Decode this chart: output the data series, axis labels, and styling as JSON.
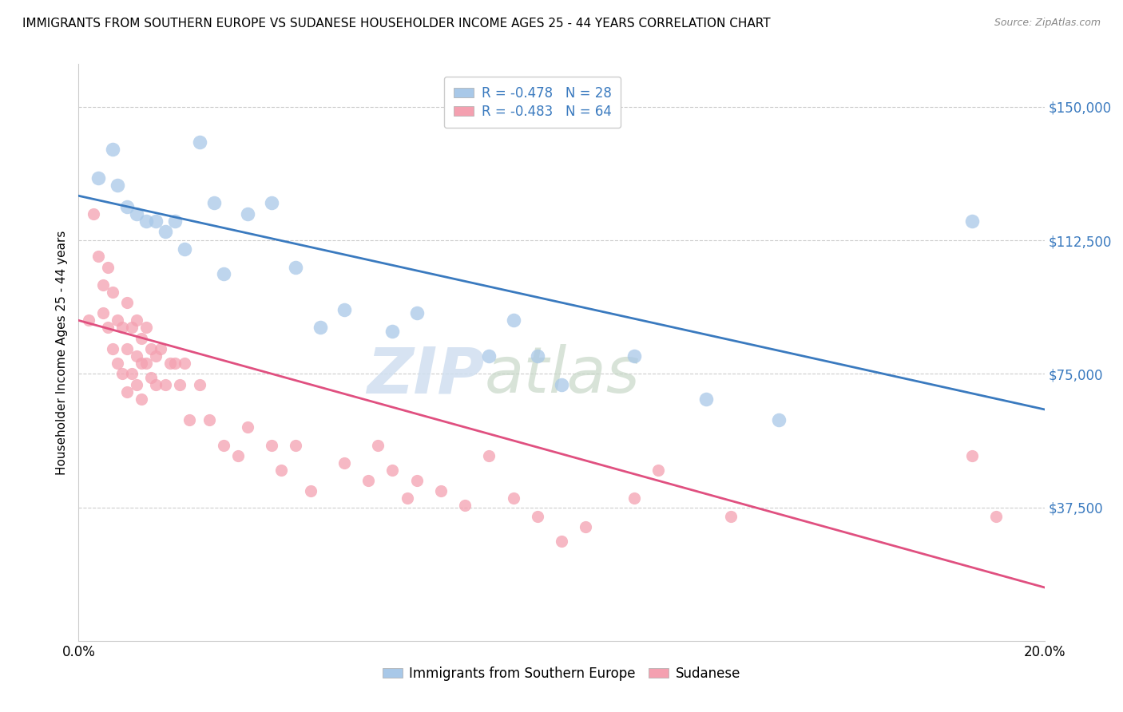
{
  "title": "IMMIGRANTS FROM SOUTHERN EUROPE VS SUDANESE HOUSEHOLDER INCOME AGES 25 - 44 YEARS CORRELATION CHART",
  "source": "Source: ZipAtlas.com",
  "ylabel": "Householder Income Ages 25 - 44 years",
  "xlim": [
    0.0,
    0.2
  ],
  "ylim": [
    0,
    162000
  ],
  "yticks": [
    37500,
    75000,
    112500,
    150000
  ],
  "ytick_labels": [
    "$37,500",
    "$75,000",
    "$112,500",
    "$150,000"
  ],
  "xticks": [
    0.0,
    0.05,
    0.1,
    0.15,
    0.2
  ],
  "xtick_labels": [
    "0.0%",
    "",
    "",
    "",
    "20.0%"
  ],
  "legend_r1": "R = -0.478   N = 28",
  "legend_r2": "R = -0.483   N = 64",
  "blue_color": "#a8c8e8",
  "pink_color": "#f4a0b0",
  "blue_line_color": "#3a7abf",
  "pink_line_color": "#e05080",
  "blue_tick_color": "#3a7abf",
  "watermark_zip": "ZIP",
  "watermark_atlas": "atlas",
  "blue_line_x0": 0.0,
  "blue_line_y0": 125000,
  "blue_line_x1": 0.2,
  "blue_line_y1": 65000,
  "pink_line_x0": 0.0,
  "pink_line_y0": 90000,
  "pink_line_x1": 0.2,
  "pink_line_y1": 15000,
  "blue_scatter_x": [
    0.004,
    0.007,
    0.008,
    0.01,
    0.012,
    0.014,
    0.016,
    0.018,
    0.02,
    0.022,
    0.025,
    0.028,
    0.03,
    0.035,
    0.04,
    0.045,
    0.05,
    0.055,
    0.065,
    0.07,
    0.085,
    0.09,
    0.095,
    0.1,
    0.115,
    0.13,
    0.145,
    0.185
  ],
  "blue_scatter_y": [
    130000,
    138000,
    128000,
    122000,
    120000,
    118000,
    118000,
    115000,
    118000,
    110000,
    140000,
    123000,
    103000,
    120000,
    123000,
    105000,
    88000,
    93000,
    87000,
    92000,
    80000,
    90000,
    80000,
    72000,
    80000,
    68000,
    62000,
    118000
  ],
  "pink_scatter_x": [
    0.002,
    0.003,
    0.004,
    0.005,
    0.005,
    0.006,
    0.006,
    0.007,
    0.007,
    0.008,
    0.008,
    0.009,
    0.009,
    0.01,
    0.01,
    0.01,
    0.011,
    0.011,
    0.012,
    0.012,
    0.012,
    0.013,
    0.013,
    0.013,
    0.014,
    0.014,
    0.015,
    0.015,
    0.016,
    0.016,
    0.017,
    0.018,
    0.019,
    0.02,
    0.021,
    0.022,
    0.023,
    0.025,
    0.027,
    0.03,
    0.033,
    0.035,
    0.04,
    0.042,
    0.045,
    0.048,
    0.055,
    0.06,
    0.062,
    0.065,
    0.068,
    0.07,
    0.075,
    0.08,
    0.085,
    0.09,
    0.095,
    0.1,
    0.105,
    0.115,
    0.12,
    0.135,
    0.185,
    0.19
  ],
  "pink_scatter_y": [
    90000,
    120000,
    108000,
    100000,
    92000,
    105000,
    88000,
    98000,
    82000,
    90000,
    78000,
    88000,
    75000,
    95000,
    82000,
    70000,
    88000,
    75000,
    90000,
    80000,
    72000,
    85000,
    78000,
    68000,
    88000,
    78000,
    82000,
    74000,
    80000,
    72000,
    82000,
    72000,
    78000,
    78000,
    72000,
    78000,
    62000,
    72000,
    62000,
    55000,
    52000,
    60000,
    55000,
    48000,
    55000,
    42000,
    50000,
    45000,
    55000,
    48000,
    40000,
    45000,
    42000,
    38000,
    52000,
    40000,
    35000,
    28000,
    32000,
    40000,
    48000,
    35000,
    52000,
    35000
  ]
}
